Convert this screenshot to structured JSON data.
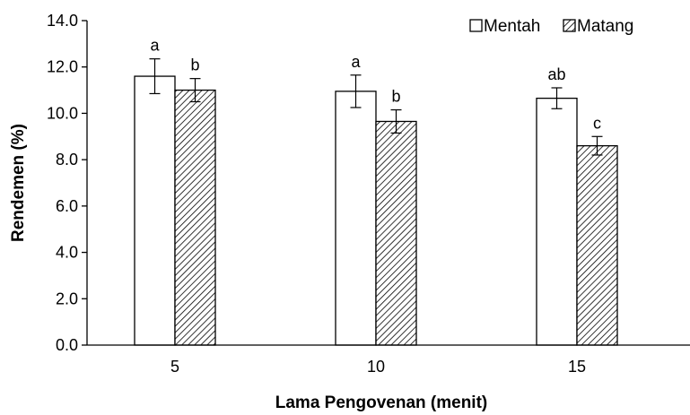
{
  "chart_data": {
    "type": "bar",
    "categories": [
      "5",
      "10",
      "15"
    ],
    "series": [
      {
        "name": "Mentah",
        "values": [
          11.6,
          10.95,
          10.65
        ],
        "errors": [
          0.75,
          0.7,
          0.45
        ],
        "labels": [
          "a",
          "a",
          "ab"
        ],
        "fill": "white"
      },
      {
        "name": "Matang",
        "values": [
          11.0,
          9.65,
          8.6
        ],
        "errors": [
          0.5,
          0.5,
          0.4
        ],
        "labels": [
          "b",
          "b",
          "c"
        ],
        "fill": "hatched"
      }
    ],
    "xlabel": "Lama Pengovenan (menit)",
    "ylabel": "Rendemen (%)",
    "ylim": [
      0,
      14
    ],
    "yticks": [
      "0.0",
      "2.0",
      "4.0",
      "6.0",
      "8.0",
      "10.0",
      "12.0",
      "14.0"
    ],
    "grid": false,
    "legend_position": "top-right"
  },
  "colors": {
    "axis": "#000000",
    "bar_stroke": "#000000",
    "bar_fill_mentah": "#ffffff",
    "hatch": "#000000"
  }
}
